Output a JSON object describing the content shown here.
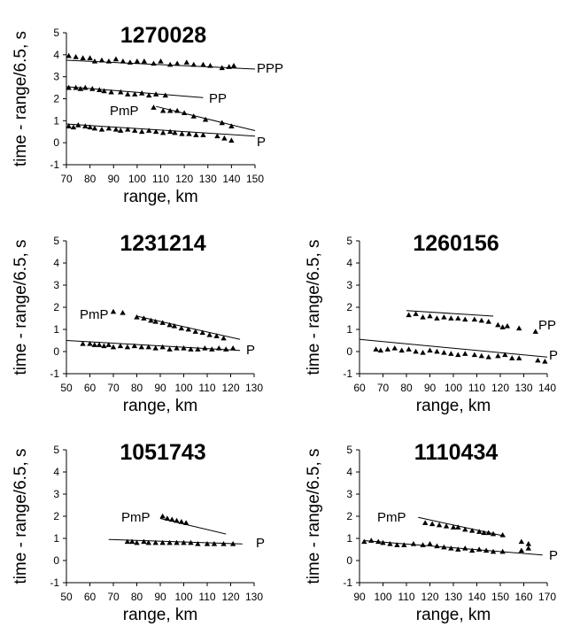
{
  "chart_data": [
    {
      "type": "scatter",
      "title": "1270028",
      "xlabel": "range, km",
      "ylabel": "time - range/6.5, s",
      "xlim": [
        70,
        150
      ],
      "ylim": [
        -1,
        5
      ],
      "xticks": [
        70,
        80,
        90,
        100,
        110,
        120,
        130,
        140,
        150
      ],
      "yticks": [
        -1,
        0,
        1,
        2,
        3,
        4,
        5
      ],
      "series": [
        {
          "name": "PPP",
          "line": {
            "x": [
              70,
              150
            ],
            "y": [
              3.75,
              3.35
            ]
          },
          "points": {
            "x": [
              71,
              74,
              77,
              80,
              82,
              85,
              88,
              91,
              94,
              97,
              100,
              103,
              107,
              110,
              114,
              117,
              121,
              124,
              128,
              131,
              136,
              139,
              141
            ],
            "y": [
              3.95,
              3.9,
              3.85,
              3.85,
              3.7,
              3.75,
              3.7,
              3.8,
              3.7,
              3.65,
              3.7,
              3.7,
              3.6,
              3.7,
              3.55,
              3.6,
              3.65,
              3.55,
              3.55,
              3.5,
              3.4,
              3.45,
              3.5
            ]
          }
        },
        {
          "name": "PP",
          "line": {
            "x": [
              70,
              128
            ],
            "y": [
              2.55,
              2.05
            ]
          },
          "points": {
            "x": [
              71,
              74,
              76,
              78,
              81,
              84,
              86,
              89,
              93,
              96,
              99,
              102,
              105,
              108,
              112
            ],
            "y": [
              2.5,
              2.5,
              2.45,
              2.5,
              2.45,
              2.4,
              2.35,
              2.3,
              2.3,
              2.2,
              2.2,
              2.25,
              2.15,
              2.2,
              2.15
            ]
          }
        },
        {
          "name": "PmP",
          "line": {
            "x": [
              108,
              150
            ],
            "y": [
              1.65,
              0.55
            ]
          },
          "points": {
            "x": [
              107,
              111,
              114,
              117,
              120,
              124,
              129,
              136,
              140
            ],
            "y": [
              1.6,
              1.45,
              1.45,
              1.45,
              1.35,
              1.2,
              1.05,
              0.9,
              0.75
            ]
          }
        },
        {
          "name": "P",
          "line": {
            "x": [
              70,
              150
            ],
            "y": [
              0.85,
              0.3
            ]
          },
          "points": {
            "x": [
              71,
              73,
              75,
              78,
              80,
              82,
              85,
              88,
              91,
              93,
              96,
              99,
              102,
              105,
              108,
              111,
              114,
              116,
              119,
              122,
              125,
              128,
              134,
              137,
              140
            ],
            "y": [
              0.75,
              0.7,
              0.8,
              0.75,
              0.7,
              0.65,
              0.6,
              0.65,
              0.6,
              0.55,
              0.6,
              0.55,
              0.5,
              0.55,
              0.5,
              0.45,
              0.5,
              0.45,
              0.4,
              0.4,
              0.35,
              0.35,
              0.3,
              0.2,
              0.1
            ]
          }
        }
      ]
    },
    {
      "type": "scatter",
      "title": "1231214",
      "xlabel": "range, km",
      "ylabel": "time - range/6.5, s",
      "xlim": [
        50,
        130
      ],
      "ylim": [
        -1,
        5
      ],
      "xticks": [
        50,
        60,
        70,
        80,
        90,
        100,
        110,
        120,
        130
      ],
      "yticks": [
        -1,
        0,
        1,
        2,
        3,
        4,
        5
      ],
      "series": [
        {
          "name": "PmP",
          "line": {
            "x": [
              80,
              124
            ],
            "y": [
              1.6,
              0.55
            ]
          },
          "points": {
            "x": [
              70,
              74,
              80,
              83,
              86,
              88,
              91,
              94,
              96,
              99,
              102,
              105,
              108,
              111,
              114,
              117
            ],
            "y": [
              1.8,
              1.75,
              1.55,
              1.5,
              1.4,
              1.35,
              1.3,
              1.2,
              1.15,
              1.05,
              1.0,
              0.9,
              0.85,
              0.75,
              0.7,
              0.6
            ]
          }
        },
        {
          "name": "P",
          "line": {
            "x": [
              50,
              124
            ],
            "y": [
              0.5,
              0.05
            ]
          },
          "points": {
            "x": [
              57,
              60,
              62,
              64,
              66,
              68,
              70,
              73,
              76,
              79,
              82,
              85,
              88,
              91,
              94,
              97,
              100,
              103,
              106,
              109,
              112,
              115,
              118,
              121
            ],
            "y": [
              0.35,
              0.35,
              0.3,
              0.3,
              0.25,
              0.3,
              0.2,
              0.25,
              0.2,
              0.25,
              0.2,
              0.2,
              0.15,
              0.2,
              0.1,
              0.15,
              0.15,
              0.1,
              0.1,
              0.15,
              0.1,
              0.15,
              0.1,
              0.15
            ]
          }
        }
      ]
    },
    {
      "type": "scatter",
      "title": "1260156",
      "xlabel": "range, km",
      "ylabel": "time - range/6.5, s",
      "xlim": [
        60,
        140
      ],
      "ylim": [
        -1,
        5
      ],
      "xticks": [
        60,
        70,
        80,
        90,
        100,
        110,
        120,
        130,
        140
      ],
      "yticks": [
        -1,
        0,
        1,
        2,
        3,
        4,
        5
      ],
      "series": [
        {
          "name": "PP",
          "line": {
            "x": [
              80,
              117
            ],
            "y": [
              1.85,
              1.6
            ]
          },
          "points": {
            "x": [
              81,
              84,
              87,
              90,
              93,
              96,
              99,
              102,
              105,
              109,
              112,
              115,
              119,
              121,
              123,
              128,
              135
            ],
            "y": [
              1.65,
              1.7,
              1.55,
              1.6,
              1.5,
              1.55,
              1.5,
              1.5,
              1.45,
              1.45,
              1.4,
              1.35,
              1.2,
              1.1,
              1.15,
              1.05,
              0.9
            ]
          }
        },
        {
          "name": "P",
          "line": {
            "x": [
              60,
              140
            ],
            "y": [
              0.55,
              -0.25
            ]
          },
          "points": {
            "x": [
              67,
              69,
              72,
              75,
              78,
              81,
              84,
              87,
              90,
              93,
              96,
              99,
              102,
              105,
              109,
              112,
              115,
              119,
              122,
              125,
              128,
              136,
              139
            ],
            "y": [
              0.1,
              0.05,
              0.1,
              0.15,
              0.05,
              0.1,
              0.0,
              -0.05,
              0.05,
              0.0,
              -0.05,
              -0.1,
              -0.15,
              -0.1,
              -0.15,
              -0.2,
              -0.25,
              -0.2,
              -0.15,
              -0.3,
              -0.3,
              -0.4,
              -0.45
            ]
          }
        }
      ]
    },
    {
      "type": "scatter",
      "title": "1051743",
      "xlabel": "range, km",
      "ylabel": "time - range/6.5, s",
      "xlim": [
        50,
        130
      ],
      "ylim": [
        -1,
        5
      ],
      "xticks": [
        50,
        60,
        70,
        80,
        90,
        100,
        110,
        120,
        130
      ],
      "yticks": [
        -1,
        0,
        1,
        2,
        3,
        4,
        5
      ],
      "series": [
        {
          "name": "PmP",
          "line": {
            "x": [
              90,
              118
            ],
            "y": [
              1.9,
              1.2
            ]
          },
          "points": {
            "x": [
              91,
              93,
              95,
              97,
              99,
              101
            ],
            "y": [
              2.0,
              1.9,
              1.85,
              1.8,
              1.75,
              1.7
            ]
          }
        },
        {
          "name": "P",
          "line": {
            "x": [
              68,
              125
            ],
            "y": [
              0.95,
              0.75
            ]
          },
          "points": {
            "x": [
              76,
              78,
              80,
              83,
              85,
              88,
              91,
              94,
              97,
              100,
              103,
              106,
              110,
              113,
              117,
              121
            ],
            "y": [
              0.85,
              0.85,
              0.8,
              0.85,
              0.8,
              0.8,
              0.8,
              0.8,
              0.8,
              0.8,
              0.8,
              0.75,
              0.75,
              0.75,
              0.75,
              0.75
            ]
          }
        }
      ]
    },
    {
      "type": "scatter",
      "title": "1110434",
      "xlabel": "range, km",
      "ylabel": "time - range/6.5, s",
      "xlim": [
        90,
        170
      ],
      "ylim": [
        -1,
        5
      ],
      "xticks": [
        90,
        100,
        110,
        120,
        130,
        140,
        150,
        160,
        170
      ],
      "yticks": [
        -1,
        0,
        1,
        2,
        3,
        4,
        5
      ],
      "series": [
        {
          "name": "PmP",
          "line": {
            "x": [
              115,
              152
            ],
            "y": [
              1.95,
              1.1
            ]
          },
          "points": {
            "x": [
              118,
              121,
              124,
              127,
              130,
              132,
              135,
              138,
              141,
              143,
              145,
              147,
              151,
              159,
              162
            ],
            "y": [
              1.7,
              1.65,
              1.6,
              1.55,
              1.5,
              1.5,
              1.4,
              1.35,
              1.3,
              1.25,
              1.25,
              1.2,
              1.15,
              0.85,
              0.75
            ]
          }
        },
        {
          "name": "P",
          "line": {
            "x": [
              92,
              168
            ],
            "y": [
              0.9,
              0.25
            ]
          },
          "points": {
            "x": [
              92,
              95,
              98,
              100,
              103,
              106,
              109,
              113,
              117,
              120,
              123,
              126,
              129,
              132,
              135,
              138,
              141,
              144,
              147,
              151,
              159,
              162
            ],
            "y": [
              0.85,
              0.9,
              0.85,
              0.8,
              0.75,
              0.7,
              0.7,
              0.75,
              0.7,
              0.75,
              0.65,
              0.6,
              0.55,
              0.5,
              0.55,
              0.45,
              0.5,
              0.45,
              0.4,
              0.4,
              0.45,
              0.55
            ]
          }
        }
      ]
    }
  ]
}
